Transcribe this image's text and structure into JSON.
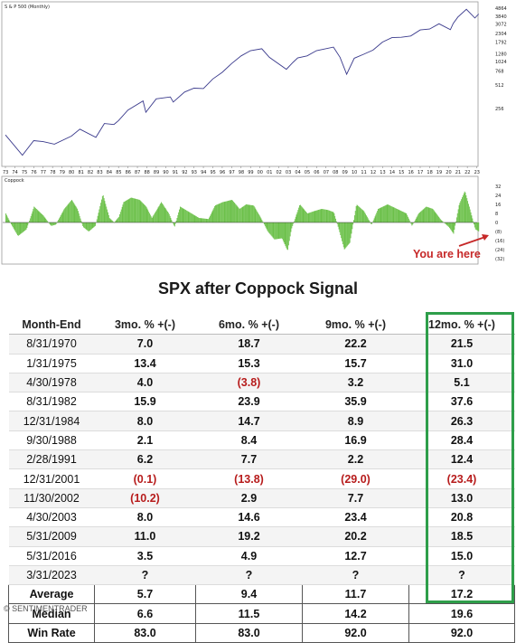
{
  "chart_data": [
    {
      "type": "line",
      "panel_label": "S & P 500 (Monthly)",
      "scale": "log",
      "x_tick_labels": [
        "73",
        "74",
        "75",
        "76",
        "77",
        "78",
        "79",
        "80",
        "81",
        "82",
        "83",
        "84",
        "85",
        "86",
        "87",
        "88",
        "89",
        "90",
        "91",
        "92",
        "93",
        "94",
        "95",
        "96",
        "97",
        "98",
        "99",
        "00",
        "01",
        "02",
        "03",
        "04",
        "05",
        "06",
        "07",
        "08",
        "09",
        "10",
        "11",
        "12",
        "13",
        "14",
        "15",
        "16",
        "17",
        "18",
        "19",
        "20",
        "21",
        "22",
        "23"
      ],
      "y_tick_labels": [
        "4864",
        "3840",
        "3072",
        "2304",
        "1792",
        "1280",
        "1024",
        "768",
        "512",
        "256"
      ],
      "series": [
        {
          "x": [
            1973,
            1974.8,
            1976,
            1977,
            1978.2,
            1980,
            1980.9,
            1982.6,
            1983.5,
            1984.5,
            1985,
            1986,
            1987.6,
            1987.9,
            1989,
            1990.5,
            1990.8,
            1992,
            1993,
            1994,
            1995,
            1996,
            1997,
            1998,
            1999,
            2000.2,
            2001,
            2002.8,
            2003.5,
            2004,
            2005,
            2006,
            2007.8,
            2008.5,
            2009.2,
            2010,
            2011,
            2012,
            2013,
            2014,
            2015,
            2016,
            2017,
            2018,
            2019,
            2020.2,
            2020.5,
            2021,
            2021.9,
            2022.8,
            2023.2
          ],
          "values": [
            118,
            65,
            100,
            97,
            90,
            114,
            140,
            110,
            165,
            160,
            180,
            245,
            320,
            230,
            340,
            360,
            310,
            415,
            465,
            460,
            610,
            740,
            960,
            1200,
            1400,
            1480,
            1150,
            810,
            990,
            1130,
            1200,
            1400,
            1550,
            1150,
            700,
            1120,
            1260,
            1420,
            1800,
            2050,
            2070,
            2150,
            2570,
            2640,
            3080,
            2590,
            3100,
            3750,
            4700,
            3650,
            4100
          ]
        }
      ]
    },
    {
      "type": "bar",
      "panel_label": "Coppock",
      "y_tick_labels": [
        "32",
        "24",
        "16",
        "8",
        "0",
        "(8)",
        "(16)",
        "(24)",
        "(32)"
      ],
      "ylim": [
        -32,
        32
      ],
      "annotation": "You are here",
      "series": [
        {
          "x": [
            1973,
            1973.6,
            1974.3,
            1975.2,
            1976,
            1976.5,
            1977,
            1977.8,
            1978.3,
            1979.2,
            1980,
            1980.6,
            1981.2,
            1981.8,
            1982.5,
            1983.3,
            1984,
            1984.5,
            1985,
            1985.5,
            1986.3,
            1987.2,
            1987.9,
            1988.5,
            1989.5,
            1990.3,
            1990.9,
            1991.5,
            1992.5,
            1993.5,
            1994.5,
            1995.2,
            1996,
            1997,
            1997.8,
            1998.5,
            1999.3,
            2000,
            2000.8,
            2001.5,
            2002.3,
            2002.9,
            2003.3,
            2004.2,
            2005,
            2005.7,
            2006.5,
            2007.2,
            2007.8,
            2008.4,
            2008.9,
            2009.5,
            2010.2,
            2011,
            2011.8,
            2012.5,
            2013.5,
            2014.5,
            2015.5,
            2016.1,
            2016.8,
            2017.6,
            2018.3,
            2019.2,
            2020,
            2020.5,
            2021.1,
            2021.7,
            2022.3,
            2022.8,
            2023.2
          ],
          "values": [
            8,
            -2,
            -12,
            -6,
            14,
            10,
            6,
            -3,
            -2,
            12,
            20,
            12,
            -4,
            -8,
            -3,
            25,
            4,
            0,
            5,
            18,
            22,
            20,
            14,
            4,
            18,
            8,
            -4,
            14,
            9,
            4,
            3,
            15,
            18,
            20,
            12,
            16,
            15,
            5,
            -8,
            -15,
            -14,
            -25,
            -6,
            16,
            8,
            10,
            12,
            11,
            9,
            -8,
            -24,
            -18,
            16,
            10,
            -2,
            12,
            16,
            12,
            8,
            -3,
            8,
            14,
            12,
            2,
            -4,
            -10,
            16,
            28,
            10,
            -6,
            -8
          ]
        }
      ]
    },
    {
      "type": "table",
      "title": "SPX after Coppock Signal",
      "columns": [
        "Month-End",
        "3mo. % +(-)",
        "6mo. % +(-)",
        "9mo. % +(-)",
        "12mo. % +(-)"
      ],
      "rows": [
        [
          "8/31/1970",
          "7.0",
          "18.7",
          "22.2",
          "21.5"
        ],
        [
          "1/31/1975",
          "13.4",
          "15.3",
          "15.7",
          "31.0"
        ],
        [
          "4/30/1978",
          "4.0",
          "(3.8)",
          "3.2",
          "5.1"
        ],
        [
          "8/31/1982",
          "15.9",
          "23.9",
          "35.9",
          "37.6"
        ],
        [
          "12/31/1984",
          "8.0",
          "14.7",
          "8.9",
          "26.3"
        ],
        [
          "9/30/1988",
          "2.1",
          "8.4",
          "16.9",
          "28.4"
        ],
        [
          "2/28/1991",
          "6.2",
          "7.7",
          "2.2",
          "12.4"
        ],
        [
          "12/31/2001",
          "(0.1)",
          "(13.8)",
          "(29.0)",
          "(23.4)"
        ],
        [
          "11/30/2002",
          "(10.2)",
          "2.9",
          "7.7",
          "13.0"
        ],
        [
          "4/30/2003",
          "8.0",
          "14.6",
          "23.4",
          "20.8"
        ],
        [
          "5/31/2009",
          "11.0",
          "19.2",
          "20.2",
          "18.5"
        ],
        [
          "5/31/2016",
          "3.5",
          "4.9",
          "12.7",
          "15.0"
        ],
        [
          "3/31/2023",
          "?",
          "?",
          "?",
          "?"
        ]
      ],
      "summary": [
        [
          "Average",
          "5.7",
          "9.4",
          "11.7",
          "17.2"
        ],
        [
          "Median",
          "6.6",
          "11.5",
          "14.2",
          "19.6"
        ],
        [
          "Win Rate",
          "83.0",
          "83.0",
          "92.0",
          "92.0"
        ]
      ]
    }
  ],
  "colors": {
    "price_line": "#3a3a8c",
    "coppock_bar": "#6cc04a",
    "negative": "#b71c1c",
    "highlight_box": "#2e9e4a",
    "annotation": "#c62828"
  },
  "footer": "© SENTIMENTRADER"
}
